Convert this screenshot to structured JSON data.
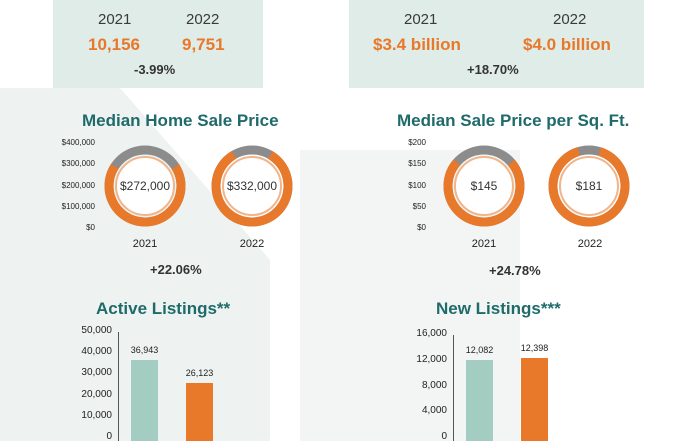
{
  "colors": {
    "accent_orange": "#e8782a",
    "teal_text": "#1f6b6a",
    "panel_bg": "#dfece7",
    "bar_teal": "#a3cdc1",
    "ring_gray": "#8c8c8c"
  },
  "top_left": {
    "year_a": "2021",
    "year_b": "2022",
    "val_a": "10,156",
    "val_b": "9,751",
    "change": "-3.99%"
  },
  "top_right": {
    "year_a": "2021",
    "year_b": "2022",
    "val_a": "$3.4 billion",
    "val_b": "$4.0 billion",
    "change": "+18.70%"
  },
  "chart_data": [
    {
      "type": "pie",
      "title": "Median Home Sale Price",
      "y_ticks": [
        "$400,000",
        "$300,000",
        "$200,000",
        "$100,000",
        "$0"
      ],
      "categories": [
        "2021",
        "2022"
      ],
      "values": [
        272000,
        332000
      ],
      "value_labels": [
        "$272,000",
        "$332,000"
      ],
      "max": 400000,
      "change": "+22.06%"
    },
    {
      "type": "pie",
      "title": "Median Sale Price per Sq. Ft.",
      "y_ticks": [
        "$200",
        "$150",
        "$100",
        "$50",
        "$0"
      ],
      "categories": [
        "2021",
        "2022"
      ],
      "values": [
        145,
        181
      ],
      "value_labels": [
        "$145",
        "$181"
      ],
      "max": 200,
      "change": "+24.78%"
    },
    {
      "type": "bar",
      "title": "Active Listings**",
      "y_ticks": [
        "50,000",
        "40,000",
        "30,000",
        "20,000",
        "10,000",
        "0"
      ],
      "values": [
        36943,
        26123
      ],
      "value_labels": [
        "36,943",
        "26,123"
      ],
      "ylim": [
        0,
        50000
      ]
    },
    {
      "type": "bar",
      "title": "New Listings***",
      "y_ticks": [
        "16,000",
        "12,000",
        "8,000",
        "4,000",
        "0"
      ],
      "values": [
        12082,
        12398
      ],
      "value_labels": [
        "12,082",
        "12,398"
      ],
      "ylim": [
        0,
        16000
      ]
    }
  ]
}
